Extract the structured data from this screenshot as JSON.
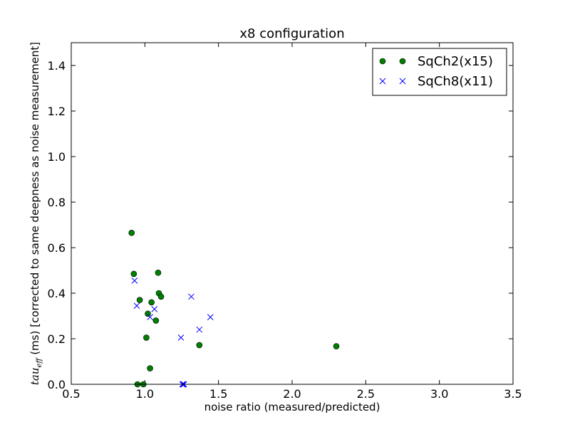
{
  "chart_data": {
    "type": "scatter",
    "title": "x8 configuration",
    "xlabel": "noise ratio (measured/predicted)",
    "ylabel_math": "tau",
    "ylabel_sub": "eff",
    "ylabel_rest": " (ms) [corrected to same deepness as noise measurement]",
    "xlim": [
      0.5,
      3.5
    ],
    "ylim": [
      0.0,
      1.5
    ],
    "xticks": [
      "0.5",
      "1.0",
      "1.5",
      "2.0",
      "2.5",
      "3.0",
      "3.5"
    ],
    "yticks": [
      "0.0",
      "0.2",
      "0.4",
      "0.6",
      "0.8",
      "1.0",
      "1.2",
      "1.4"
    ],
    "grid": false,
    "legend_position": "top-right",
    "series": [
      {
        "name": "SqCh2(x15)",
        "marker": "circle",
        "color": "#007f00",
        "points": [
          [
            0.91,
            0.665
          ],
          [
            0.925,
            0.485
          ],
          [
            0.95,
            0.0
          ],
          [
            0.965,
            0.37
          ],
          [
            0.99,
            0.0
          ],
          [
            1.01,
            0.205
          ],
          [
            1.02,
            0.31
          ],
          [
            1.035,
            0.07
          ],
          [
            1.045,
            0.36
          ],
          [
            1.075,
            0.28
          ],
          [
            1.09,
            0.49
          ],
          [
            1.095,
            0.4
          ],
          [
            1.11,
            0.385
          ],
          [
            1.37,
            0.172
          ],
          [
            2.3,
            0.167
          ]
        ]
      },
      {
        "name": "SqCh8(x11)",
        "marker": "x",
        "color": "#0000ff",
        "points": [
          [
            0.93,
            0.455
          ],
          [
            0.945,
            0.345
          ],
          [
            1.035,
            0.295
          ],
          [
            1.065,
            0.33
          ],
          [
            1.245,
            0.205
          ],
          [
            1.255,
            0.0
          ],
          [
            1.265,
            0.0
          ],
          [
            1.315,
            0.385
          ],
          [
            1.37,
            0.24
          ],
          [
            1.445,
            0.295
          ],
          [
            1.26,
            0.0
          ]
        ]
      }
    ]
  }
}
